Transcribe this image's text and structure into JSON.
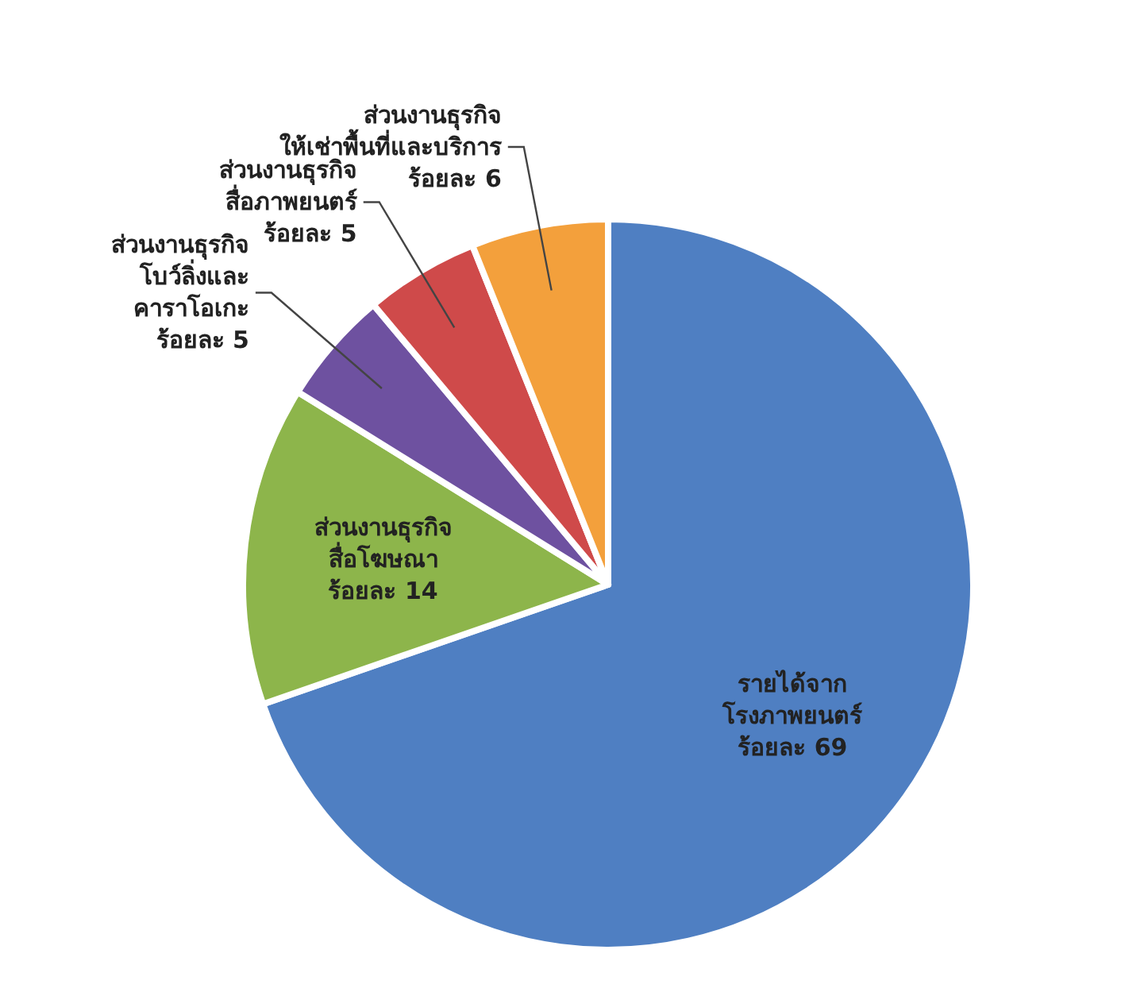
{
  "chart_data": {
    "type": "pie",
    "categories": [
      "รายได้จาก\nโรงภาพยนตร์",
      "ส่วนงานธุรกิจ\nสื่อโฆษณา",
      "ส่วนงานธุรกิจ\nโบว์ลิ่งและ\nคาราโอเกะ",
      "ส่วนงานธุรกิจ\nสื่อภาพยนตร์",
      "ส่วนงานธุรกิจ\nให้เช่าพื้นที่และบริการ"
    ],
    "values": [
      69,
      14,
      5,
      5,
      6
    ],
    "value_labels": [
      "ร้อยละ 69",
      "ร้อยละ 14",
      "ร้อยละ 5",
      "ร้อยละ 5",
      "ร้อยละ 6"
    ],
    "colors": [
      "#4f7fc2",
      "#8db54b",
      "#6e51a0",
      "#cf4a4a",
      "#f3a03c"
    ]
  }
}
